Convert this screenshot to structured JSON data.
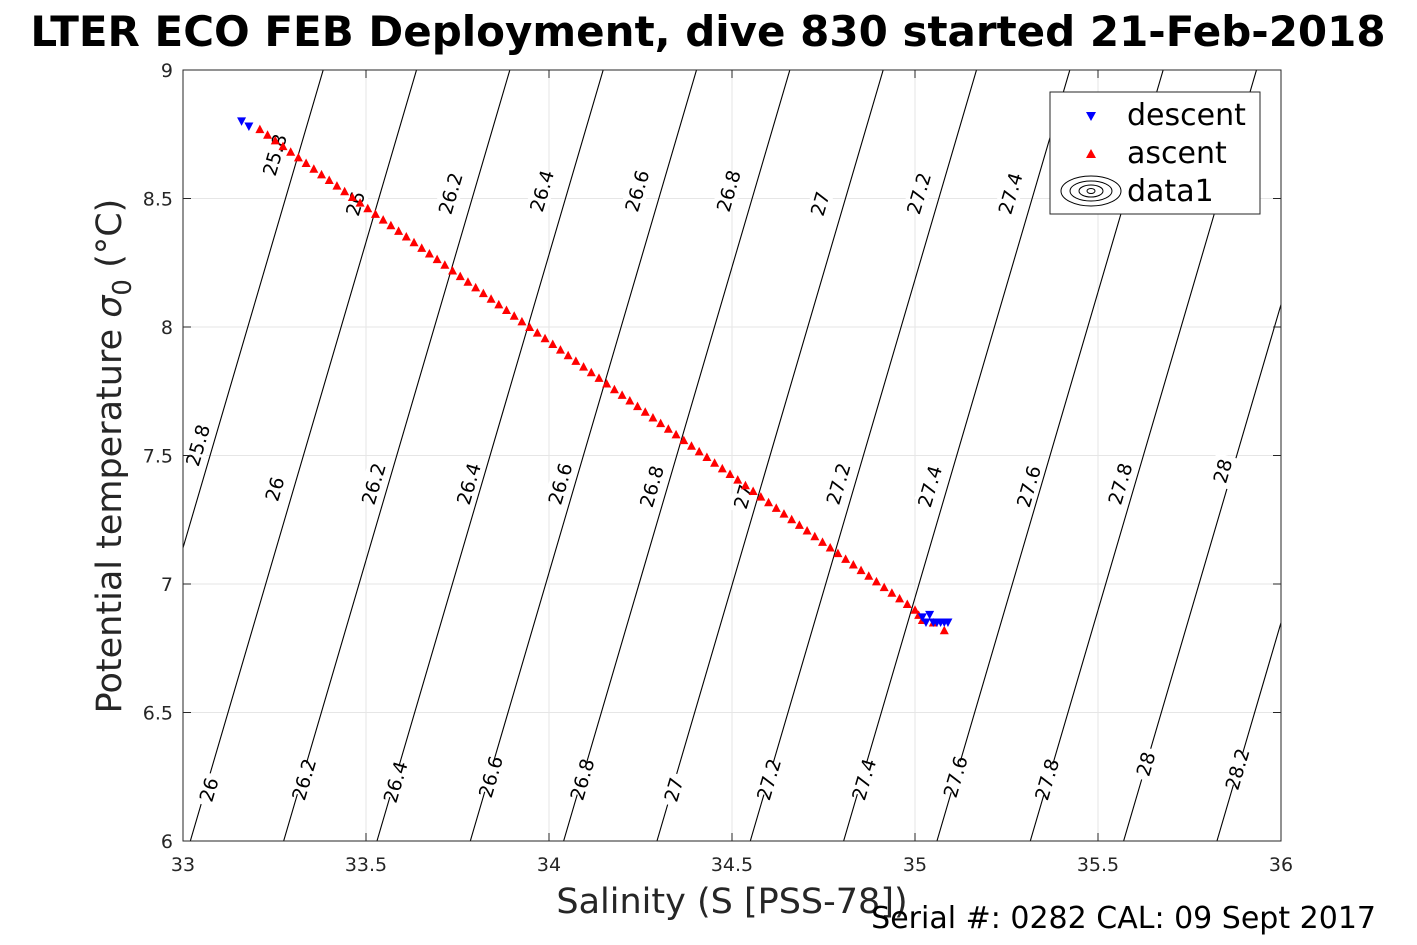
{
  "chart_data": {
    "type": "scatter",
    "title": "LTER ECO FEB Deployment, dive 830 started 21-Feb-2018",
    "xlabel": "Salinity (S [PSS-78])",
    "ylabel_main": "Potential temperature ",
    "ylabel_sigma": "σ",
    "ylabel_sub": "0",
    "ylabel_unit": " (°C)",
    "xlim": [
      33,
      36
    ],
    "ylim": [
      6,
      9
    ],
    "xticks": [
      33,
      33.5,
      34,
      34.5,
      35,
      35.5,
      36
    ],
    "xtick_labels": [
      "33",
      "33.5",
      "34",
      "34.5",
      "35",
      "35.5",
      "36"
    ],
    "yticks": [
      6,
      6.5,
      7,
      7.5,
      8,
      8.5,
      9
    ],
    "ytick_labels": [
      "6",
      "6.5",
      "7",
      "7.5",
      "8",
      "8.5",
      "9"
    ],
    "grid": true,
    "legend_position": "top-right",
    "series": [
      {
        "name": "descent",
        "marker": "triangle-down",
        "color": "#0000ff",
        "x": [
          33.16,
          33.18,
          35.02,
          35.03,
          35.04,
          35.05,
          35.06,
          35.07,
          35.08,
          35.09
        ],
        "y": [
          8.8,
          8.78,
          6.87,
          6.85,
          6.88,
          6.85,
          6.85,
          6.85,
          6.85,
          6.85
        ]
      },
      {
        "name": "ascent",
        "marker": "triangle-up",
        "color": "#ff0000",
        "x_start": 33.21,
        "y_start": 8.77,
        "x_end": 35.0,
        "y_end": 6.9,
        "count": 86,
        "extra_x": [
          35.01,
          35.02,
          35.05,
          35.08
        ],
        "extra_y": [
          6.88,
          6.86,
          6.85,
          6.82
        ]
      },
      {
        "name": "data1",
        "type": "contour",
        "color": "#000000",
        "line_levels": [
          25.8,
          26,
          26.2,
          26.4,
          26.6,
          26.8,
          27,
          27.2,
          27.4,
          27.6,
          27.8,
          28,
          28.2
        ],
        "labels": [
          {
            "text": "25.8",
            "x": 33.25,
            "y": 8.67
          },
          {
            "text": "26",
            "x": 33.47,
            "y": 8.48
          },
          {
            "text": "26.2",
            "x": 33.73,
            "y": 8.52
          },
          {
            "text": "26.4",
            "x": 33.98,
            "y": 8.53
          },
          {
            "text": "26.6",
            "x": 34.24,
            "y": 8.53
          },
          {
            "text": "26.8",
            "x": 34.49,
            "y": 8.53
          },
          {
            "text": "27",
            "x": 34.74,
            "y": 8.48
          },
          {
            "text": "27.2",
            "x": 35.01,
            "y": 8.52
          },
          {
            "text": "27.4",
            "x": 35.26,
            "y": 8.52
          },
          {
            "text": "25.8",
            "x": 33.04,
            "y": 7.54
          },
          {
            "text": "26",
            "x": 33.25,
            "y": 7.37
          },
          {
            "text": "26.2",
            "x": 33.52,
            "y": 7.39
          },
          {
            "text": "26.4",
            "x": 33.78,
            "y": 7.39
          },
          {
            "text": "26.6",
            "x": 34.03,
            "y": 7.39
          },
          {
            "text": "26.8",
            "x": 34.28,
            "y": 7.38
          },
          {
            "text": "27",
            "x": 34.53,
            "y": 7.34
          },
          {
            "text": "27.2",
            "x": 34.79,
            "y": 7.39
          },
          {
            "text": "27.4",
            "x": 35.04,
            "y": 7.38
          },
          {
            "text": "27.6",
            "x": 35.31,
            "y": 7.38
          },
          {
            "text": "27.8",
            "x": 35.56,
            "y": 7.39
          },
          {
            "text": "28",
            "x": 35.84,
            "y": 7.44
          },
          {
            "text": "26",
            "x": 33.07,
            "y": 6.2
          },
          {
            "text": "26.2",
            "x": 33.33,
            "y": 6.24
          },
          {
            "text": "26.4",
            "x": 33.58,
            "y": 6.23
          },
          {
            "text": "26.6",
            "x": 33.84,
            "y": 6.25
          },
          {
            "text": "26.8",
            "x": 34.09,
            "y": 6.24
          },
          {
            "text": "27",
            "x": 34.34,
            "y": 6.2
          },
          {
            "text": "27.2",
            "x": 34.6,
            "y": 6.24
          },
          {
            "text": "27.4",
            "x": 34.86,
            "y": 6.24
          },
          {
            "text": "27.6",
            "x": 35.11,
            "y": 6.25
          },
          {
            "text": "27.8",
            "x": 35.36,
            "y": 6.24
          },
          {
            "text": "28",
            "x": 35.63,
            "y": 6.3
          },
          {
            "text": "28.2",
            "x": 35.88,
            "y": 6.28
          }
        ]
      }
    ]
  },
  "footer": {
    "serial": "Serial #: 0282  CAL: 09 Sept 2017"
  }
}
